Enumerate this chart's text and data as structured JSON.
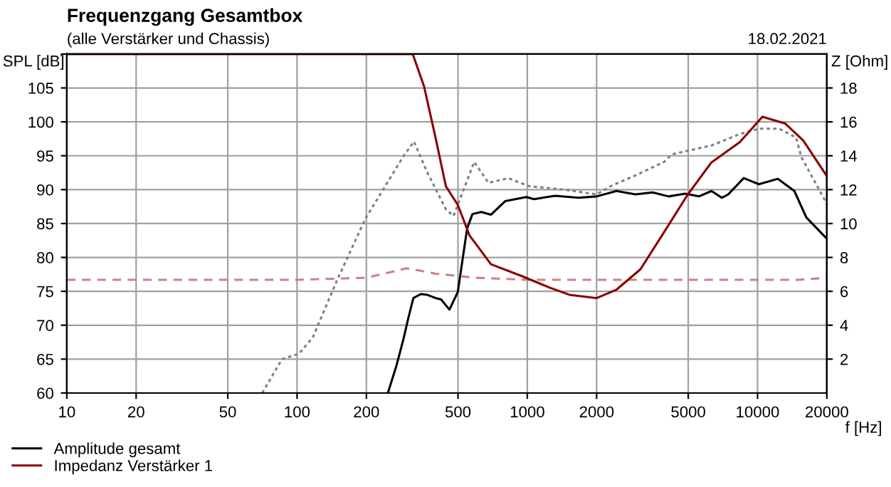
{
  "chart_data": {
    "type": "line",
    "title": "Frequenzgang Gesamtbox",
    "subtitle": "(alle Verstärker und Chassis)",
    "annotations": [
      "18.02.2021"
    ],
    "xlabel": "f [Hz]",
    "ylabel": "SPL [dB]",
    "y2label": "Z [Ohm]",
    "log": "x",
    "xlim": [
      10,
      20000
    ],
    "xticks": [
      10,
      20,
      50,
      100,
      200,
      500,
      1000,
      2000,
      5000,
      10000,
      20000
    ],
    "ylim": [
      60,
      110
    ],
    "yticks": [
      60,
      65,
      70,
      75,
      80,
      85,
      90,
      95,
      100,
      105,
      {
        "value": 110,
        "label": null
      }
    ],
    "y2lim": [
      0,
      20
    ],
    "y2ticks": [
      2,
      4,
      6,
      8,
      10,
      12,
      14,
      16,
      18
    ],
    "grid": true,
    "legend": "bottom left",
    "series": [
      {
        "name": "Amplitude gesamt",
        "color": "#000000",
        "line_style": "solid",
        "x": [
          248,
          270,
          290,
          304,
          320,
          345,
          366,
          400,
          422,
          459,
          499,
          548,
          578,
          631,
          695,
          801,
          991,
          1070,
          1320,
          1670,
          2000,
          2440,
          2950,
          3500,
          4110,
          4850,
          5560,
          6310,
          7000,
          7460,
          8710,
          10140,
          12250,
          14450,
          16290,
          19800
        ],
        "values": [
          60,
          64,
          68,
          71,
          74,
          74.6,
          74.5,
          74,
          73.8,
          72.3,
          74.9,
          84.3,
          86.4,
          86.7,
          86.3,
          88.3,
          88.9,
          88.6,
          89.1,
          88.8,
          89.0,
          89.8,
          89.3,
          89.6,
          89.0,
          89.4,
          89.0,
          89.8,
          88.8,
          89.3,
          91.7,
          90.8,
          91.6,
          89.8,
          85.9,
          82.9
        ]
      },
      {
        "color": "#808080",
        "line_style": "dotted",
        "x": [
          70.6,
          86,
          102,
          117,
          149,
          198,
          288,
          322,
          366,
          443,
          478,
          588,
          678,
          826,
          1020,
          1450,
          2000,
          2330,
          2950,
          3930,
          4240,
          6300,
          8370,
          10200,
          12400,
          14700,
          15500,
          20000
        ],
        "values": [
          60,
          65.0,
          65.8,
          68.2,
          76.6,
          85.7,
          94.8,
          97.1,
          92.7,
          87.1,
          86.1,
          94.1,
          91.0,
          91.7,
          90.5,
          90.0,
          89.3,
          90.6,
          92.1,
          94.1,
          95.2,
          96.5,
          98.2,
          99.0,
          99.0,
          97.7,
          94.8,
          87.9
        ]
      },
      {
        "color": "#d08080",
        "line_style": "dashed",
        "x": [
          10,
          100,
          200,
          300,
          400,
          600,
          1000,
          5000,
          15000,
          20000
        ],
        "values": [
          76.7,
          76.7,
          77.0,
          78.4,
          77.6,
          77.0,
          76.7,
          76.7,
          76.7,
          77.0
        ]
      },
      {
        "name": "Impedanz Verstärker 1",
        "color": "#8b0000",
        "line_style": "solid",
        "axis": "y2",
        "x": [
          10,
          318,
          356,
          399,
          443,
          499,
          561,
          695,
          946,
          1260,
          1520,
          2000,
          2440,
          3100,
          3930,
          4970,
          6300,
          8370,
          10500,
          13200,
          15800,
          20000
        ],
        "values": [
          20,
          20,
          18.1,
          15.1,
          12.2,
          11.1,
          9.3,
          7.6,
          6.9,
          6.2,
          5.8,
          5.6,
          6.1,
          7.3,
          9.5,
          11.7,
          13.6,
          14.8,
          16.3,
          15.9,
          14.9,
          12.8
        ]
      }
    ]
  }
}
